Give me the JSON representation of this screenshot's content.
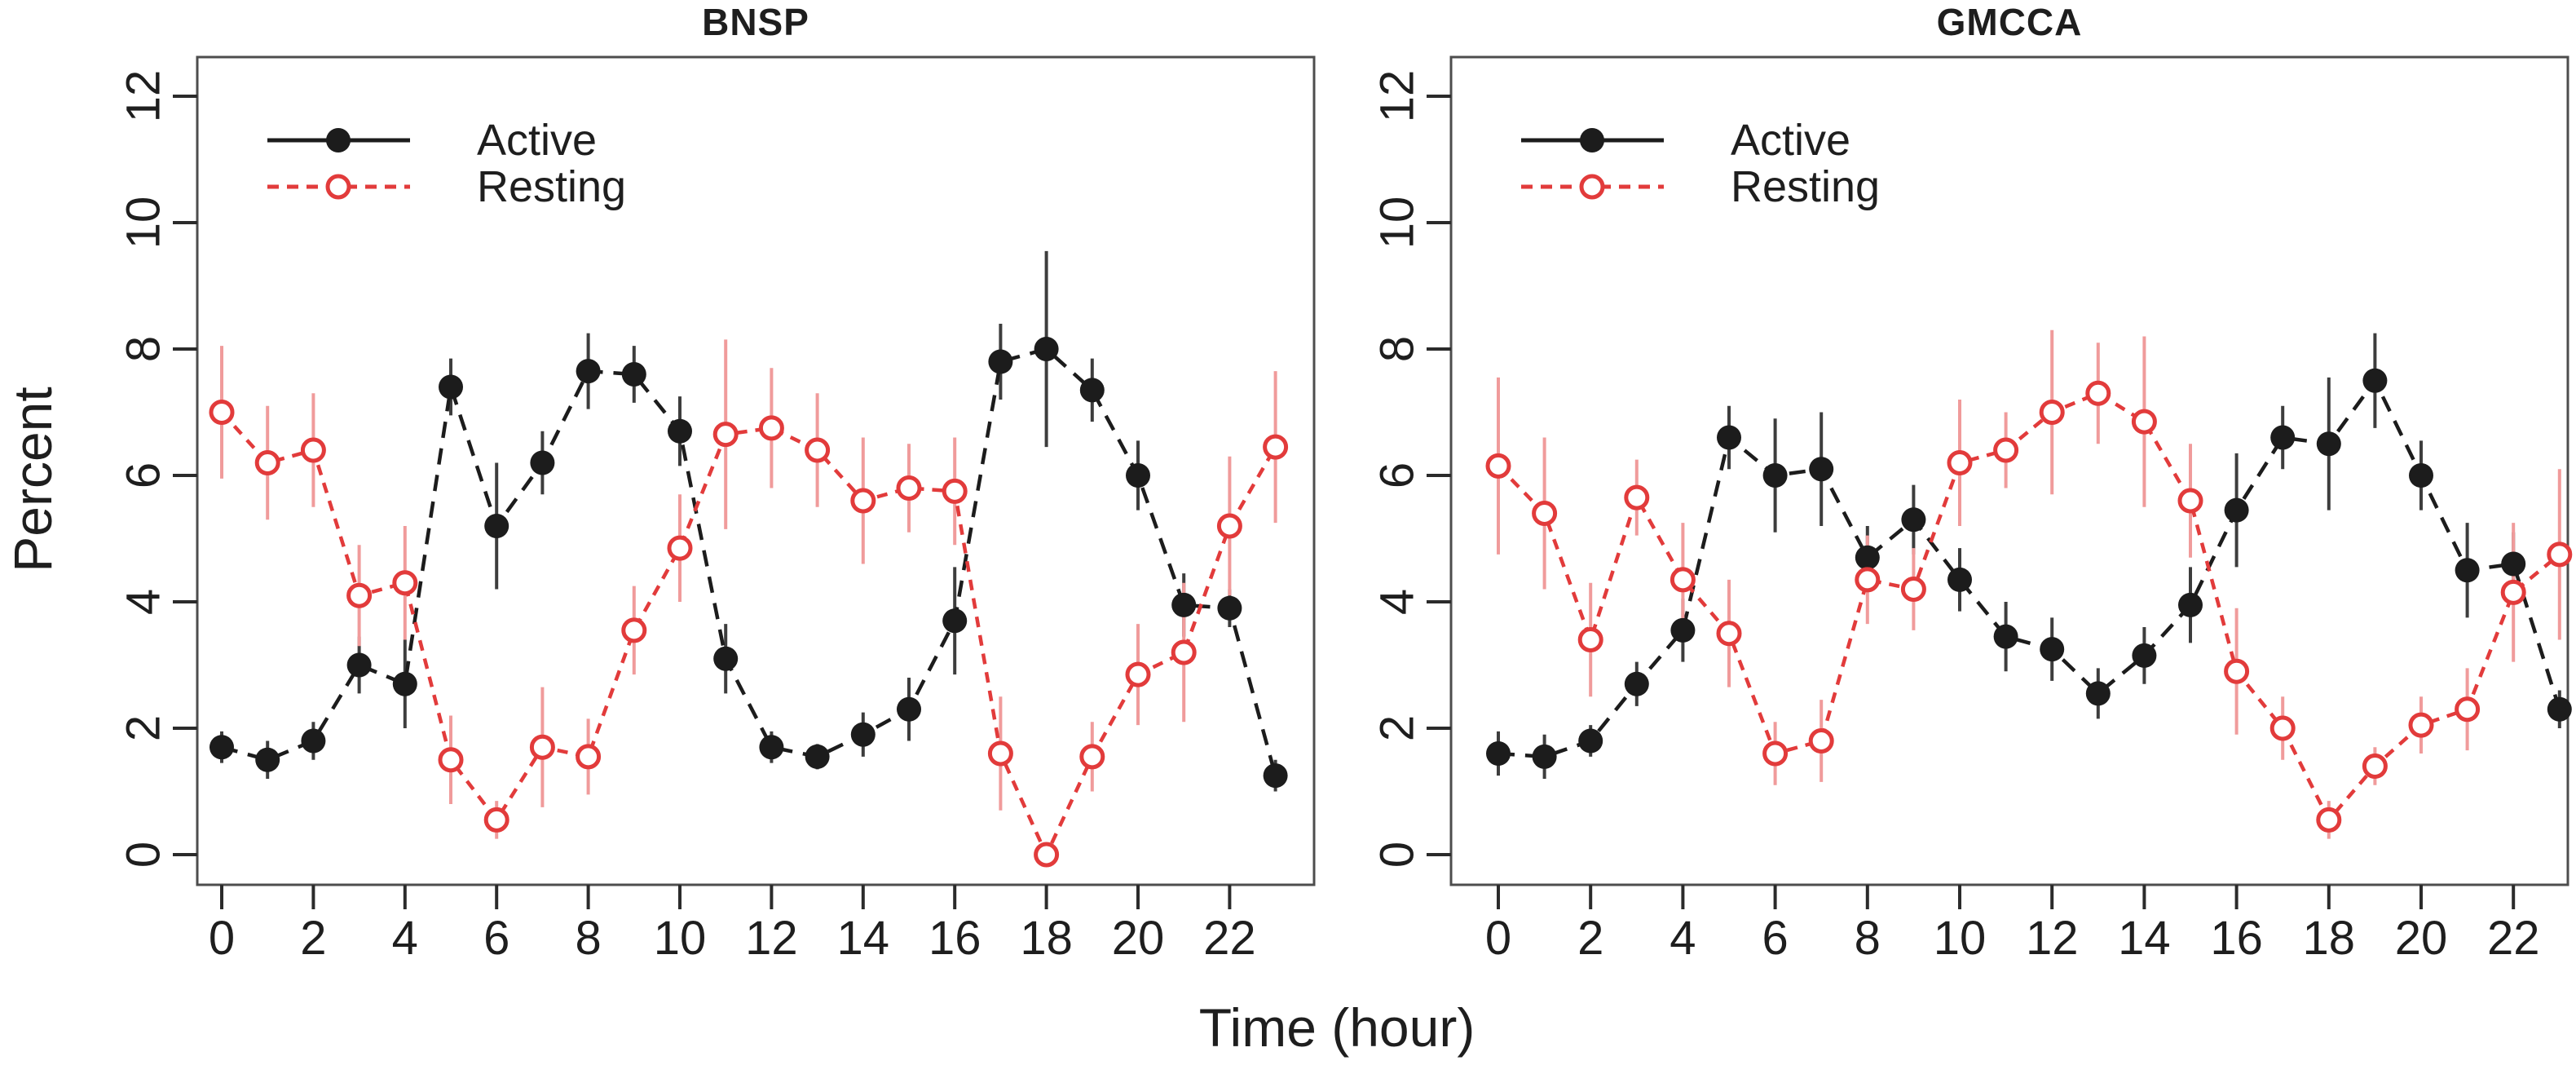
{
  "figure": {
    "ylabel": "Percent",
    "xlabel": "Time (hour)",
    "legend": {
      "active_label": "Active",
      "resting_label": "Resting"
    },
    "colors": {
      "active": "#1c1c1c",
      "resting": "#e23b3b",
      "active_err": "#3d3d3d",
      "resting_err": "#f09b9b",
      "axis": "#4d4d4d",
      "text": "#1e1e1e"
    }
  },
  "chart_data": [
    {
      "type": "line",
      "title": "BNSP",
      "xlabel": "Time (hour)",
      "ylabel": "Percent",
      "x": [
        0,
        1,
        2,
        3,
        4,
        5,
        6,
        7,
        8,
        9,
        10,
        11,
        12,
        13,
        14,
        15,
        16,
        17,
        18,
        19,
        20,
        21,
        22,
        23
      ],
      "xticks": [
        0,
        2,
        4,
        6,
        8,
        10,
        12,
        14,
        16,
        18,
        20,
        22
      ],
      "yticks": [
        0,
        2,
        4,
        6,
        8,
        10,
        12
      ],
      "ylim": [
        0,
        12
      ],
      "grid": false,
      "legend_position": "top-left",
      "series": [
        {
          "name": "Active",
          "marker": "filled-circle",
          "line": "solid",
          "values": [
            1.7,
            1.5,
            1.8,
            3.0,
            2.7,
            7.4,
            5.2,
            6.2,
            7.65,
            7.6,
            6.7,
            3.1,
            1.7,
            1.55,
            1.9,
            2.3,
            3.7,
            7.8,
            8.0,
            7.35,
            6.0,
            3.95,
            3.9,
            1.25
          ],
          "errors": [
            0.25,
            0.3,
            0.3,
            0.45,
            0.7,
            0.45,
            1.0,
            0.5,
            0.6,
            0.45,
            0.55,
            0.55,
            0.25,
            0.2,
            0.35,
            0.5,
            0.85,
            0.6,
            1.55,
            0.5,
            0.55,
            0.5,
            0.3,
            0.25
          ]
        },
        {
          "name": "Resting",
          "marker": "open-circle",
          "line": "dashed",
          "values": [
            7.0,
            6.2,
            6.4,
            4.1,
            4.3,
            1.5,
            0.55,
            1.7,
            1.55,
            3.55,
            4.85,
            6.65,
            6.75,
            6.4,
            5.6,
            5.8,
            5.75,
            1.6,
            0.0,
            1.55,
            2.85,
            3.2,
            5.2,
            6.45
          ],
          "errors": [
            1.05,
            0.9,
            0.9,
            0.8,
            0.9,
            0.7,
            0.3,
            0.95,
            0.6,
            0.7,
            0.85,
            1.5,
            0.95,
            0.9,
            1.0,
            0.7,
            0.85,
            0.9,
            0.1,
            0.55,
            0.8,
            1.1,
            1.1,
            1.2
          ]
        }
      ]
    },
    {
      "type": "line",
      "title": "GMCCA",
      "xlabel": "Time (hour)",
      "ylabel": "Percent",
      "x": [
        0,
        1,
        2,
        3,
        4,
        5,
        6,
        7,
        8,
        9,
        10,
        11,
        12,
        13,
        14,
        15,
        16,
        17,
        18,
        19,
        20,
        21,
        22,
        23
      ],
      "xticks": [
        0,
        2,
        4,
        6,
        8,
        10,
        12,
        14,
        16,
        18,
        20,
        22
      ],
      "yticks": [
        0,
        2,
        4,
        6,
        8,
        10,
        12
      ],
      "ylim": [
        0,
        12
      ],
      "grid": false,
      "legend_position": "top-left",
      "series": [
        {
          "name": "Active",
          "marker": "filled-circle",
          "line": "solid",
          "values": [
            1.6,
            1.55,
            1.8,
            2.7,
            3.55,
            6.6,
            6.0,
            6.1,
            4.7,
            5.3,
            4.35,
            3.45,
            3.25,
            2.55,
            3.15,
            3.95,
            5.45,
            6.6,
            6.5,
            7.5,
            6.0,
            4.5,
            4.6,
            2.3
          ],
          "errors": [
            0.35,
            0.35,
            0.25,
            0.35,
            0.5,
            0.5,
            0.9,
            0.9,
            0.5,
            0.55,
            0.5,
            0.55,
            0.5,
            0.4,
            0.45,
            0.6,
            0.9,
            0.5,
            1.05,
            0.75,
            0.55,
            0.75,
            0.5,
            0.3
          ]
        },
        {
          "name": "Resting",
          "marker": "open-circle",
          "line": "dashed",
          "values": [
            6.15,
            5.4,
            3.4,
            5.65,
            4.35,
            3.5,
            1.6,
            1.8,
            4.35,
            4.2,
            6.2,
            6.4,
            7.0,
            7.3,
            6.85,
            5.6,
            2.9,
            2.0,
            0.55,
            1.4,
            2.05,
            2.3,
            4.15,
            4.75
          ],
          "errors": [
            1.4,
            1.2,
            0.9,
            0.6,
            0.9,
            0.85,
            0.5,
            0.65,
            0.7,
            0.65,
            1.0,
            0.6,
            1.3,
            0.8,
            1.35,
            0.9,
            1.0,
            0.5,
            0.3,
            0.3,
            0.45,
            0.65,
            1.1,
            1.35
          ]
        }
      ]
    }
  ]
}
